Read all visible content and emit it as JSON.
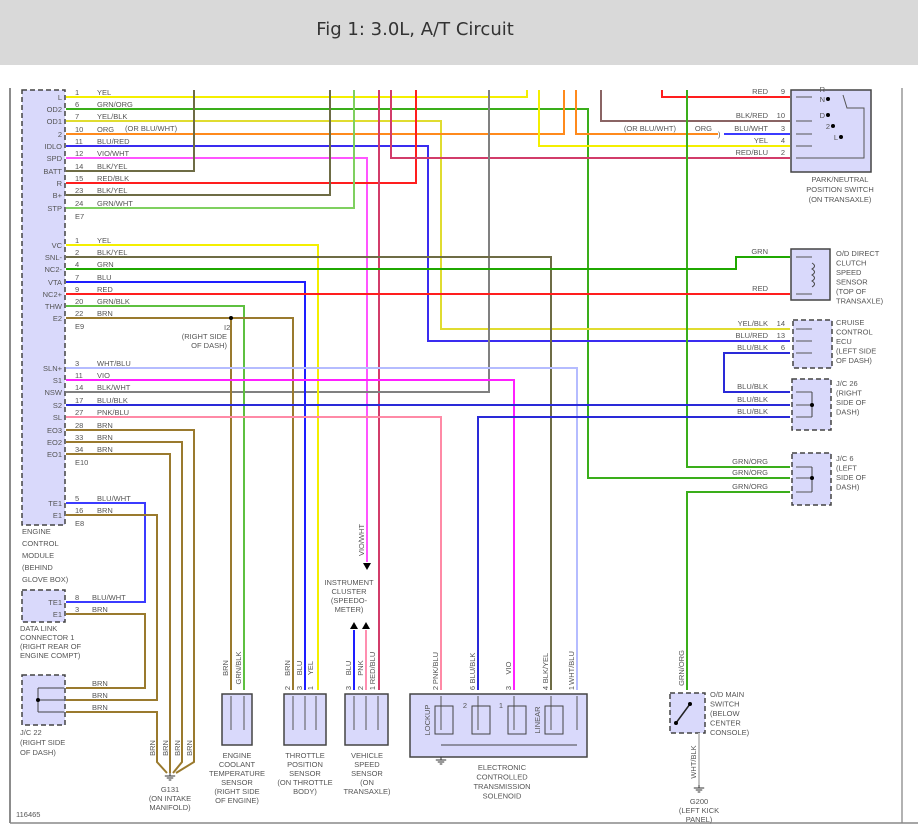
{
  "header": {
    "title": "Fig 1: 3.0L, A/T Circuit"
  },
  "figure_id": "116465",
  "wire_colors": {
    "YEL": "#f4ef00",
    "GRN": "#1fa800",
    "ORG": "#ff8a1c",
    "BLU": "#1e1eff",
    "RED": "#ff1e1e",
    "VIO": "#ff20ff",
    "PNK": "#ff8fb0",
    "BRN": "#9a7a2e",
    "BLK/YEL": "#6e6c45",
    "GRN/WHT": "#7fd060",
    "GRN/ORG": "#3aae1a",
    "YEL/BLK": "#e0dc30",
    "BLU/RED": "#3a2cf0",
    "VIO/WHT": "#ff55ff",
    "RED/BLK": "#f03a3a",
    "GRN/BLK": "#5ec040",
    "WHT/BLU": "#b5bcff",
    "BLK/WHT": "#808080",
    "BLU/BLK": "#2a2ad8",
    "PNK/BLU": "#ff8aa6",
    "BLU/WHT": "#3b3bff",
    "RED/BLU": "#d23c6a",
    "BLK/RED": "#8a6464",
    "WHT/BLK": "#c4c4c4"
  },
  "component_fill": "#d9d9fb",
  "ecm": {
    "label": [
      "ENGINE",
      "CONTROL",
      "MODULE",
      "(BEHIND",
      "GLOVE BOX)"
    ],
    "connectors": [
      {
        "id": "E7",
        "note": "(OR BLU/WHT)",
        "pins": [
          {
            "name": "L",
            "num": "1",
            "wire": "YEL"
          },
          {
            "name": "OD2",
            "num": "6",
            "wire": "GRN/ORG"
          },
          {
            "name": "OD1",
            "num": "7",
            "wire": "YEL/BLK"
          },
          {
            "name": "2",
            "num": "10",
            "wire": "ORG"
          },
          {
            "name": "IDLO",
            "num": "11",
            "wire": "BLU/RED"
          },
          {
            "name": "SPD",
            "num": "12",
            "wire": "VIO/WHT"
          },
          {
            "name": "BATT",
            "num": "14",
            "wire": "BLK/YEL"
          },
          {
            "name": "R",
            "num": "15",
            "wire": "RED/BLK"
          },
          {
            "name": "B+",
            "num": "23",
            "wire": "BLK/YEL"
          },
          {
            "name": "STP",
            "num": "24",
            "wire": "GRN/WHT"
          }
        ]
      },
      {
        "id": "E9",
        "pins": [
          {
            "name": "VC",
            "num": "1",
            "wire": "YEL"
          },
          {
            "name": "SNL-",
            "num": "2",
            "wire": "BLK/YEL"
          },
          {
            "name": "NC2-",
            "num": "4",
            "wire": "GRN"
          },
          {
            "name": "VTA",
            "num": "7",
            "wire": "BLU"
          },
          {
            "name": "NC2+",
            "num": "9",
            "wire": "RED"
          },
          {
            "name": "THW",
            "num": "20",
            "wire": "GRN/BLK"
          },
          {
            "name": "E2",
            "num": "22",
            "wire": "BRN"
          }
        ]
      },
      {
        "id": "E10",
        "pins": [
          {
            "name": "SLN+",
            "num": "3",
            "wire": "WHT/BLU"
          },
          {
            "name": "S1",
            "num": "11",
            "wire": "VIO"
          },
          {
            "name": "NSW",
            "num": "14",
            "wire": "BLK/WHT"
          },
          {
            "name": "S2",
            "num": "17",
            "wire": "BLU/BLK"
          },
          {
            "name": "SL",
            "num": "27",
            "wire": "PNK/BLU"
          },
          {
            "name": "EO3",
            "num": "28",
            "wire": "BRN"
          },
          {
            "name": "EO2",
            "num": "33",
            "wire": "BRN"
          },
          {
            "name": "EO1",
            "num": "34",
            "wire": "BRN"
          }
        ]
      },
      {
        "id": "E8",
        "pins": [
          {
            "name": "TE1",
            "num": "5",
            "wire": "BLU/WHT"
          },
          {
            "name": "E1",
            "num": "16",
            "wire": "BRN"
          }
        ]
      }
    ]
  },
  "splice_i2": {
    "id": "I2",
    "label": [
      "(RIGHT SIDE",
      "OF DASH)"
    ]
  },
  "pn_switch": {
    "label": [
      "PARK/NEUTRAL",
      "POSITION SWITCH",
      "(ON TRANSAXLE)"
    ],
    "positions": [
      "R",
      "N",
      "D",
      "2",
      "L"
    ],
    "splice": {
      "note": "(OR BLU/WHT)",
      "wire": "ORG"
    },
    "pins": [
      {
        "wire": "RED",
        "num": "9"
      },
      {
        "wire": "BLK/RED",
        "num": "10"
      },
      {
        "wire": "BLU/WHT",
        "num": "3"
      },
      {
        "wire": "YEL",
        "num": "4"
      },
      {
        "wire": "RED/BLU",
        "num": "2"
      }
    ]
  },
  "od_sensor": {
    "label": [
      "O/D DIRECT",
      "CLUTCH",
      "SPEED",
      "SENSOR",
      "(TOP OF",
      "TRANSAXLE)"
    ],
    "pins": [
      {
        "wire": "GRN"
      },
      {
        "wire": "RED"
      }
    ]
  },
  "cruise_ecu": {
    "label": [
      "CRUISE",
      "CONTROL",
      "ECU",
      "(LEFT SIDE",
      "OF DASH)"
    ],
    "pins": [
      {
        "wire": "YEL/BLK",
        "num": "14"
      },
      {
        "wire": "BLU/RED",
        "num": "13"
      },
      {
        "wire": "BLU/BLK",
        "num": "6"
      }
    ]
  },
  "jc26": {
    "label": [
      "J/C 26",
      "(RIGHT",
      "SIDE OF",
      "DASH)"
    ],
    "pins": [
      {
        "wire": "BLU/BLK"
      },
      {
        "wire": "BLU/BLK"
      },
      {
        "wire": "BLU/BLK"
      }
    ]
  },
  "jc6": {
    "label": [
      "J/C 6",
      "(LEFT",
      "SIDE OF",
      "DASH)"
    ],
    "pins": [
      {
        "wire": "GRN/ORG"
      },
      {
        "wire": "GRN/ORG"
      },
      {
        "wire": "GRN/ORG"
      }
    ]
  },
  "dlc": {
    "label": [
      "DATA LINK",
      "CONNECTOR 1",
      "(RIGHT REAR OF",
      "ENGINE COMPT)"
    ],
    "pins": [
      {
        "name": "TE1",
        "num": "8",
        "wire": "BLU/WHT"
      },
      {
        "name": "E1",
        "num": "3",
        "wire": "BRN"
      }
    ]
  },
  "jc22": {
    "label": [
      "J/C 22",
      "(RIGHT SIDE",
      "OF DASH)"
    ],
    "pins": [
      {
        "wire": "BRN"
      },
      {
        "wire": "BRN"
      },
      {
        "wire": "BRN"
      }
    ]
  },
  "g131": {
    "label": [
      "G131",
      "(ON INTAKE",
      "MANIFOLD)"
    ],
    "wires": [
      "BRN",
      "BRN",
      "BRN",
      "BRN"
    ]
  },
  "ect": {
    "label": [
      "ENGINE",
      "COOLANT",
      "TEMPERATURE",
      "SENSOR",
      "(RIGHT SIDE",
      "OF ENGINE)"
    ],
    "pins": [
      {
        "wire": "BRN"
      },
      {
        "wire": "GRN/BLK"
      }
    ]
  },
  "tps": {
    "label": [
      "THROTTLE",
      "POSITION",
      "SENSOR",
      "(ON THROTTLE",
      "BODY)"
    ],
    "pins": [
      {
        "num": "2",
        "wire": "BRN"
      },
      {
        "num": "3",
        "wire": "BLU"
      },
      {
        "num": "1",
        "wire": "YEL"
      }
    ]
  },
  "vss": {
    "label": [
      "VEHICLE",
      "SPEED",
      "SENSOR",
      "(ON",
      "TRANSAXLE)"
    ],
    "pins": [
      {
        "num": "3",
        "wire": "BLU"
      },
      {
        "num": "2",
        "wire": "PNK"
      },
      {
        "num": "1",
        "wire": "RED/BLU"
      }
    ]
  },
  "cluster": {
    "label": [
      "INSTRUMENT",
      "CLUSTER",
      "(SPEEDO-",
      "METER)"
    ],
    "input_wire": "VIO/WHT"
  },
  "solenoid": {
    "label": [
      "ELECTRONIC",
      "CONTROLLED",
      "TRANSMISSION",
      "SOLENOID"
    ],
    "coil_labels": [
      "LOCKUP",
      "2",
      "1",
      "LINEAR"
    ],
    "pins": [
      {
        "num": "2",
        "wire": "PNK/BLU"
      },
      {
        "num": "6",
        "wire": "BLU/BLK"
      },
      {
        "num": "3",
        "wire": "VIO"
      },
      {
        "num": "4",
        "wire": "BLK/YEL"
      },
      {
        "num": "1",
        "wire": "WHT/BLU"
      }
    ]
  },
  "od_switch": {
    "label": [
      "O/D MAIN",
      "SWITCH",
      "(BELOW",
      "CENTER",
      "CONSOLE)"
    ],
    "wire_in": "GRN/ORG",
    "wire_out": "WHT/BLK"
  },
  "g200": {
    "label": [
      "G200",
      "(LEFT KICK",
      "PANEL)"
    ]
  }
}
